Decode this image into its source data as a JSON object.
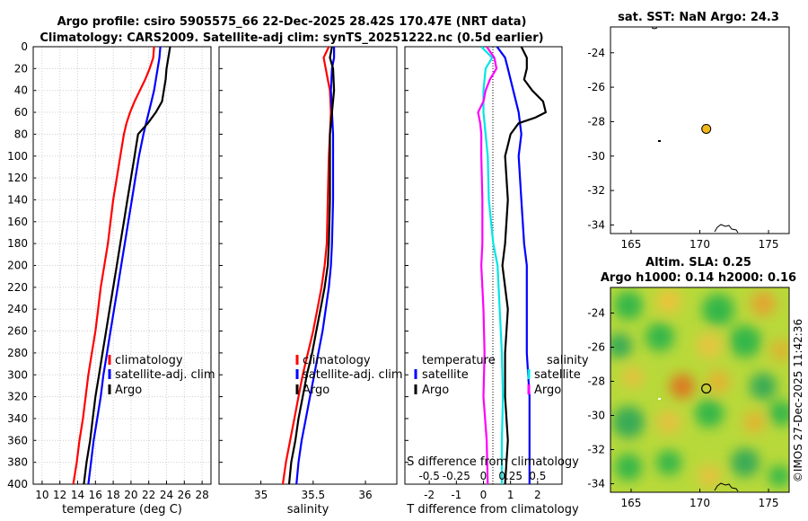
{
  "header": {
    "line1": "Argo profile: csiro 5905575_66 22-Dec-2025 28.42S 170.47E (NRT data)",
    "line2": "Climatology: CARS2009. Satellite-adj clim: synTS_20251222.nc (0.5d earlier)"
  },
  "colors": {
    "climatology": "#ff0000",
    "satellite": "#0000ff",
    "argo": "#000000",
    "sal_diff": "#ff00ff",
    "sal_sat": "#00e5e5"
  },
  "depth_axis": {
    "ticks": [
      "0",
      "20",
      "40",
      "60",
      "80",
      "100",
      "120",
      "140",
      "160",
      "180",
      "200",
      "220",
      "240",
      "260",
      "280",
      "300",
      "320",
      "340",
      "360",
      "380",
      "400"
    ]
  },
  "chart_data": [
    {
      "type": "line",
      "title": "",
      "xlabel": "temperature (deg C)",
      "ylabel": "",
      "xlim": [
        9,
        29
      ],
      "ylim": [
        400,
        0
      ],
      "xticks": [
        "10",
        "12",
        "14",
        "16",
        "18",
        "20",
        "22",
        "24",
        "26",
        "28"
      ],
      "legend": [
        "climatology",
        "satellite-adj. clim",
        "Argo"
      ],
      "series": [
        {
          "name": "climatology",
          "depth": [
            0,
            10,
            20,
            30,
            40,
            50,
            60,
            70,
            80,
            100,
            120,
            140,
            160,
            180,
            200,
            220,
            240,
            260,
            280,
            300,
            320,
            340,
            360,
            380,
            400
          ],
          "values": [
            22.6,
            22.5,
            22.1,
            21.6,
            21.0,
            20.4,
            19.9,
            19.5,
            19.2,
            18.8,
            18.4,
            18.0,
            17.7,
            17.4,
            17.0,
            16.6,
            16.3,
            16.0,
            15.6,
            15.2,
            14.9,
            14.6,
            14.2,
            13.9,
            13.5
          ]
        },
        {
          "name": "satellite-adj. clim",
          "depth": [
            0,
            10,
            20,
            30,
            40,
            50,
            60,
            70,
            80,
            100,
            120,
            140,
            160,
            180,
            200,
            220,
            240,
            260,
            280,
            300,
            320,
            340,
            360,
            380,
            400
          ],
          "values": [
            23.3,
            23.2,
            23.0,
            22.8,
            22.6,
            22.3,
            22.0,
            21.7,
            21.4,
            20.9,
            20.5,
            20.1,
            19.7,
            19.3,
            18.9,
            18.5,
            18.1,
            17.7,
            17.3,
            16.9,
            16.6,
            16.2,
            15.8,
            15.5,
            15.2
          ]
        },
        {
          "name": "Argo",
          "depth": [
            0,
            10,
            20,
            30,
            40,
            50,
            60,
            70,
            80,
            90,
            100,
            120,
            140,
            160,
            180,
            200,
            220,
            240,
            260,
            280,
            300,
            320,
            340,
            360,
            380,
            400
          ],
          "values": [
            24.4,
            24.2,
            24.0,
            23.9,
            23.7,
            23.5,
            22.8,
            21.9,
            20.8,
            20.6,
            20.4,
            20.0,
            19.6,
            19.2,
            18.8,
            18.4,
            18.0,
            17.6,
            17.2,
            16.8,
            16.4,
            16.0,
            15.7,
            15.4,
            15.0,
            14.7
          ]
        }
      ]
    },
    {
      "type": "line",
      "title": "",
      "xlabel": "salinity",
      "ylabel": "",
      "xlim": [
        34.6,
        36.3
      ],
      "ylim": [
        400,
        0
      ],
      "xticks": [
        "35",
        "35.5",
        "36"
      ],
      "legend": [
        "climatology",
        "satellite-adj. clim",
        "Argo"
      ],
      "series": [
        {
          "name": "climatology",
          "depth": [
            0,
            10,
            20,
            30,
            40,
            60,
            80,
            100,
            140,
            180,
            200,
            220,
            240,
            260,
            280,
            300,
            320,
            340,
            360,
            380,
            400
          ],
          "values": [
            35.65,
            35.6,
            35.62,
            35.64,
            35.66,
            35.67,
            35.66,
            35.65,
            35.64,
            35.63,
            35.61,
            35.58,
            35.54,
            35.5,
            35.45,
            35.4,
            35.36,
            35.32,
            35.28,
            35.24,
            35.21
          ]
        },
        {
          "name": "satellite-adj. clim",
          "depth": [
            0,
            10,
            20,
            40,
            60,
            80,
            100,
            140,
            180,
            200,
            220,
            240,
            260,
            280,
            300,
            320,
            340,
            360,
            380,
            400
          ],
          "values": [
            35.7,
            35.7,
            35.68,
            35.67,
            35.68,
            35.69,
            35.69,
            35.69,
            35.68,
            35.67,
            35.65,
            35.62,
            35.59,
            35.55,
            35.51,
            35.47,
            35.43,
            35.39,
            35.36,
            35.34
          ]
        },
        {
          "name": "Argo",
          "depth": [
            0,
            10,
            20,
            40,
            60,
            80,
            100,
            140,
            180,
            200,
            220,
            240,
            260,
            280,
            300,
            320,
            340,
            360,
            380,
            400
          ],
          "values": [
            35.68,
            35.66,
            35.69,
            35.7,
            35.68,
            35.66,
            35.66,
            35.66,
            35.65,
            35.64,
            35.61,
            35.57,
            35.53,
            35.49,
            35.44,
            35.4,
            35.36,
            35.33,
            35.29,
            35.27
          ]
        }
      ]
    },
    {
      "type": "line",
      "title": "",
      "xlabel": "T difference from climatology",
      "ylabel": "",
      "xlim": [
        -2.9,
        2.9
      ],
      "ylim": [
        400,
        0
      ],
      "xticks": [
        "-2",
        "-1",
        "0",
        "1",
        "2"
      ],
      "secondary_axis": {
        "label": "S difference from climatology",
        "ticks": [
          "-0.5",
          "-0.25",
          "0",
          "0.25",
          "0.5"
        ]
      },
      "legend": [
        "temperature",
        "satellite",
        "Argo",
        "salinity",
        "satellite",
        "Argo"
      ],
      "series": [
        {
          "name": "T satellite",
          "depth": [
            0,
            10,
            20,
            40,
            60,
            80,
            100,
            140,
            180,
            200,
            240,
            280,
            320,
            360,
            400
          ],
          "values": [
            0.5,
            0.8,
            0.9,
            1.1,
            1.3,
            1.4,
            1.3,
            1.4,
            1.5,
            1.6,
            1.6,
            1.6,
            1.7,
            1.7,
            1.7
          ]
        },
        {
          "name": "T Argo",
          "depth": [
            0,
            10,
            20,
            30,
            40,
            50,
            60,
            65,
            70,
            80,
            90,
            100,
            140,
            180,
            200,
            240,
            280,
            320,
            360,
            400
          ],
          "values": [
            1.4,
            1.6,
            1.6,
            1.5,
            1.8,
            2.2,
            2.3,
            1.9,
            1.3,
            1.0,
            0.9,
            0.8,
            0.9,
            0.8,
            0.7,
            0.9,
            0.8,
            0.8,
            0.9,
            0.8
          ]
        },
        {
          "name": "S satellite",
          "depth": [
            0,
            10,
            20,
            40,
            60,
            80,
            100,
            140,
            180,
            200,
            240,
            280,
            320,
            360,
            400
          ],
          "values": [
            -0.02,
            0.08,
            0.02,
            0.0,
            0.0,
            0.02,
            0.04,
            0.05,
            0.09,
            0.13,
            0.15,
            0.17,
            0.18,
            0.17,
            0.17
          ]
        },
        {
          "name": "S Argo",
          "depth": [
            0,
            10,
            20,
            30,
            40,
            50,
            60,
            70,
            80,
            100,
            140,
            180,
            200,
            240,
            280,
            320,
            360,
            400
          ],
          "values": [
            0.03,
            0.1,
            0.12,
            0.06,
            0.02,
            0.0,
            -0.05,
            -0.03,
            -0.02,
            -0.02,
            -0.01,
            -0.01,
            -0.02,
            0.0,
            0.01,
            0.0,
            0.03,
            0.04
          ]
        }
      ]
    },
    {
      "type": "scatter",
      "title": "sat. SST: NaN Argo: 24.3",
      "xlim": [
        163.5,
        176.5
      ],
      "ylim": [
        -34.5,
        -22.5
      ],
      "xticks": [
        "165",
        "170",
        "175"
      ],
      "yticks": [
        "-24",
        "-26",
        "-28",
        "-30",
        "-32",
        "-34"
      ],
      "points": [
        {
          "name": "Argo float",
          "x": 170.47,
          "y": -28.42
        }
      ]
    },
    {
      "type": "heatmap",
      "title_line1": "Altim. SLA: 0.25",
      "title_line2": "Argo h1000: 0.14 h2000: 0.16",
      "xlim": [
        163.5,
        176.5
      ],
      "ylim": [
        -34.5,
        -22.5
      ],
      "xticks": [
        "165",
        "170",
        "175"
      ],
      "yticks": [
        "-24",
        "-26",
        "-28",
        "-30",
        "-32",
        "-34"
      ],
      "points": [
        {
          "name": "Argo float",
          "x": 170.47,
          "y": -28.42
        }
      ]
    }
  ],
  "watermark": "©IMOS 27-Dec-2025 11:42:36"
}
